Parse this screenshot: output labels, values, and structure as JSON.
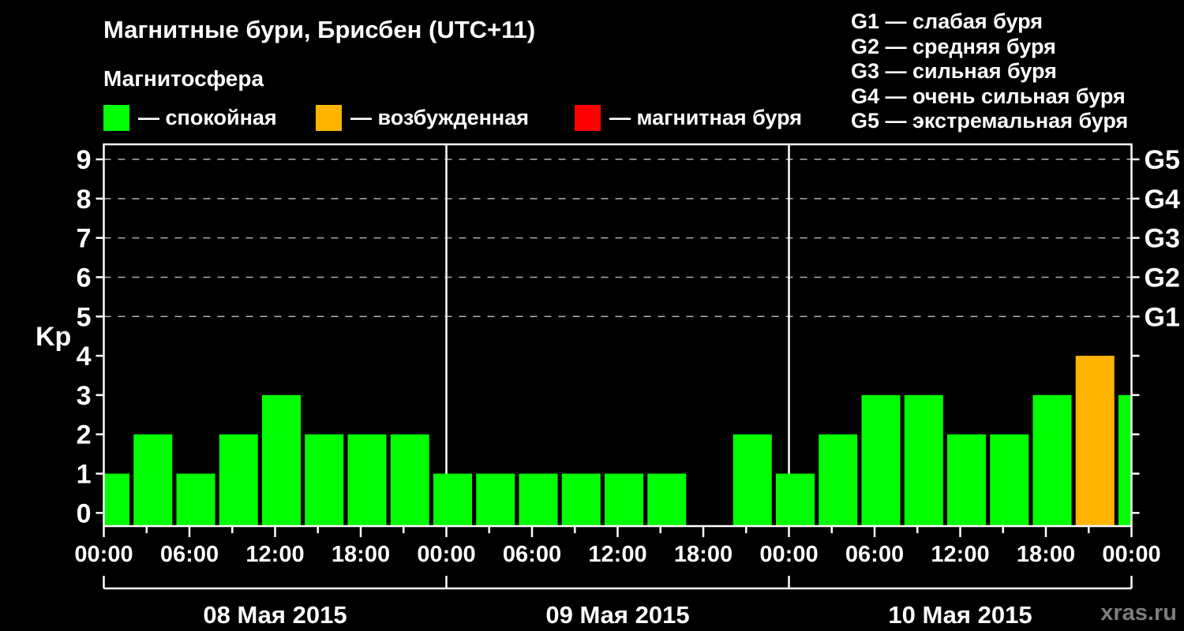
{
  "header": {
    "title": "Магнитные бури, Брисбен (UTC+11)",
    "subtitle": "Магнитосфера",
    "legend": [
      {
        "label": "— спокойная",
        "color": "#00ff00"
      },
      {
        "label": "— возбужденная",
        "color": "#ffb400"
      },
      {
        "label": "— магнитная буря",
        "color": "#ff0000"
      }
    ],
    "g_legend": [
      "G1 — слабая буря",
      "G2 — средняя буря",
      "G3 — сильная буря",
      "G4 — очень сильная буря",
      "G5 — экстремальная буря"
    ]
  },
  "watermark": "xras.ru",
  "chart_data": {
    "type": "bar",
    "title": "Магнитные бури, Брисбен (UTC+11)",
    "ylabel": "Kp",
    "ylim": [
      0,
      9
    ],
    "y_ticks": [
      0,
      1,
      2,
      3,
      4,
      5,
      6,
      7,
      8,
      9
    ],
    "right_axis": [
      {
        "label": "G1",
        "kp": 5
      },
      {
        "label": "G2",
        "kp": 6
      },
      {
        "label": "G3",
        "kp": 7
      },
      {
        "label": "G4",
        "kp": 8
      },
      {
        "label": "G5",
        "kp": 9
      }
    ],
    "grid_levels": [
      5,
      6,
      7,
      8,
      9
    ],
    "hours_per_bar": 3,
    "x_tick_labels": [
      "00:00",
      "06:00",
      "12:00",
      "18:00",
      "00:00",
      "06:00",
      "12:00",
      "18:00",
      "00:00",
      "06:00",
      "12:00",
      "18:00",
      "00:00"
    ],
    "days": [
      {
        "date": "08 Мая 2015",
        "values": [
          1,
          2,
          1,
          2,
          3,
          2,
          2,
          2
        ]
      },
      {
        "date": "09 Мая 2015",
        "values": [
          1,
          1,
          1,
          1,
          1,
          1,
          0,
          2
        ]
      },
      {
        "date": "10 Мая 2015",
        "values": [
          1,
          2,
          3,
          3,
          2,
          2,
          3,
          4
        ]
      }
    ],
    "partial_next_bar_value": 3,
    "colors": {
      "quiet": "#00ff00",
      "unsettled": "#ffb400",
      "storm": "#ff0000"
    },
    "color_rule": "Kp 0-3 quiet (green), Kp 4 unsettled (orange), Kp >= 5 storm (red)",
    "legend_position": "top",
    "grid": "dashed horizontal lines at G-levels only"
  }
}
